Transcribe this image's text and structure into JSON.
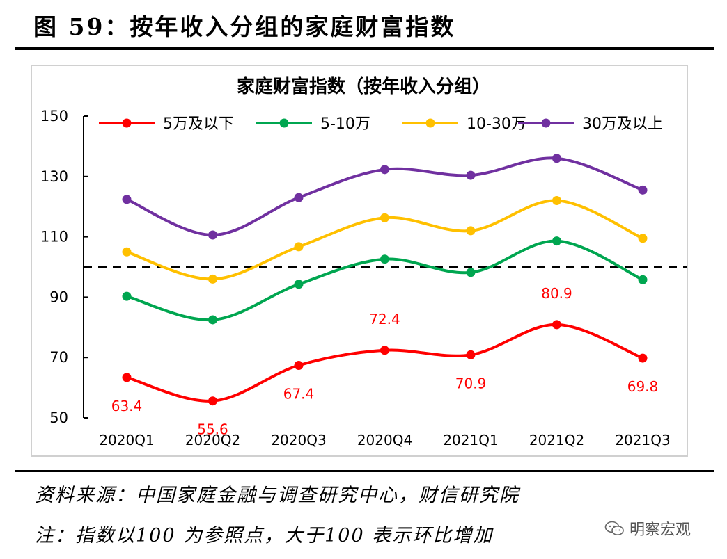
{
  "figure_title": "图 59：按年收入分组的家庭财富指数",
  "source": "资料来源：中国家庭金融与调查研究中心，财信研究院",
  "note": "注：指数以100 为参照点，大于100 表示环比增加",
  "watermark": {
    "text": "明察宏观",
    "icon": "wechat-icon"
  },
  "chart_data": {
    "type": "line",
    "title": "家庭财富指数（按年收入分组）",
    "categories": [
      "2020Q1",
      "2020Q2",
      "2020Q3",
      "2020Q4",
      "2021Q1",
      "2021Q2",
      "2021Q3"
    ],
    "ylim": [
      50,
      150
    ],
    "yticks": [
      50,
      70,
      90,
      110,
      130,
      150
    ],
    "reference_line": 100,
    "legend_position": "top",
    "series": [
      {
        "name": "5万及以下",
        "color": "#ff0000",
        "values": [
          63.4,
          55.6,
          67.4,
          72.4,
          70.9,
          80.9,
          69.8
        ],
        "data_labels": [
          "63.4",
          "55.6",
          "67.4",
          "72.4",
          "70.9",
          "80.9",
          "69.8"
        ]
      },
      {
        "name": "5-10万",
        "color": "#00a650",
        "values": [
          90.3,
          82.5,
          94.3,
          102.6,
          98.2,
          108.6,
          95.8
        ]
      },
      {
        "name": "10-30万",
        "color": "#ffc000",
        "values": [
          105.0,
          96.0,
          106.7,
          116.3,
          112.0,
          122.0,
          109.5
        ]
      },
      {
        "name": "30万及以上",
        "color": "#7030a0",
        "values": [
          122.4,
          110.6,
          123.0,
          132.3,
          130.4,
          136.0,
          125.5
        ]
      }
    ]
  }
}
